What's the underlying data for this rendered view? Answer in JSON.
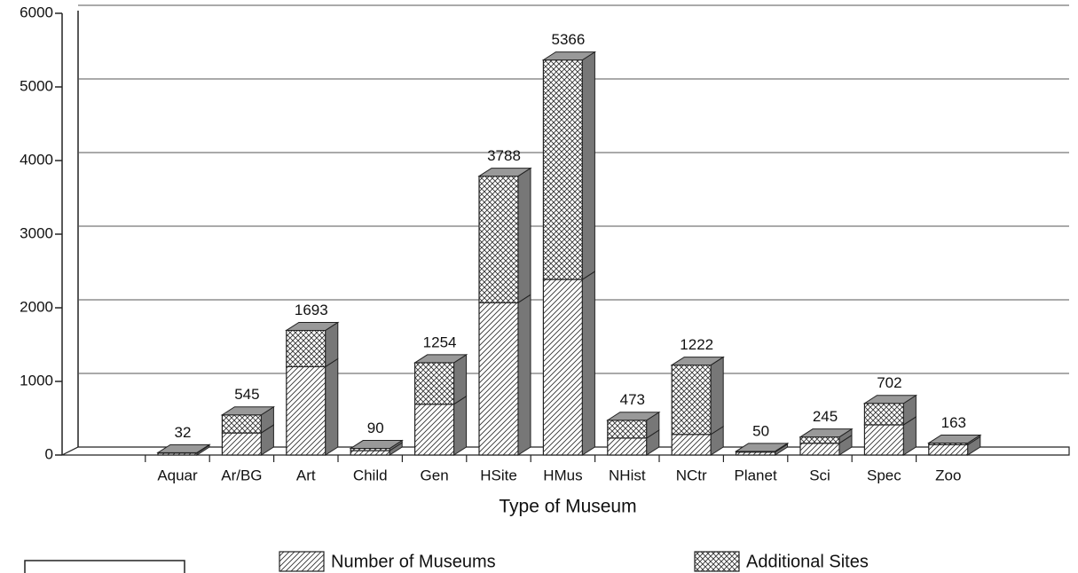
{
  "chart_data": {
    "type": "bar3d-stacked",
    "x_label": "Type of Museum",
    "categories": [
      "Aquar",
      "Ar/BG",
      "Art",
      "Child",
      "Gen",
      "HSite",
      "HMus",
      "NHist",
      "NCtr",
      "Planet",
      "Sci",
      "Spec",
      "Zoo"
    ],
    "series": [
      {
        "name": "Number of Museums",
        "color": "#222222",
        "pattern": "diagonal",
        "values": [
          25,
          300,
          1200,
          60,
          690,
          2070,
          2385,
          230,
          280,
          40,
          160,
          410,
          140
        ]
      },
      {
        "name": "Additional Sites",
        "color": "#222222",
        "pattern": "crosshatch",
        "values": [
          7,
          245,
          493,
          30,
          564,
          1718,
          2981,
          243,
          942,
          10,
          85,
          292,
          23
        ]
      }
    ],
    "totals": [
      32,
      545,
      1693,
      90,
      1254,
      3788,
      5366,
      473,
      1222,
      50,
      245,
      702,
      163
    ],
    "ylim": [
      0,
      6000
    ],
    "yticks": [
      0,
      1000,
      2000,
      3000,
      4000,
      5000,
      6000
    ],
    "grid": true
  }
}
